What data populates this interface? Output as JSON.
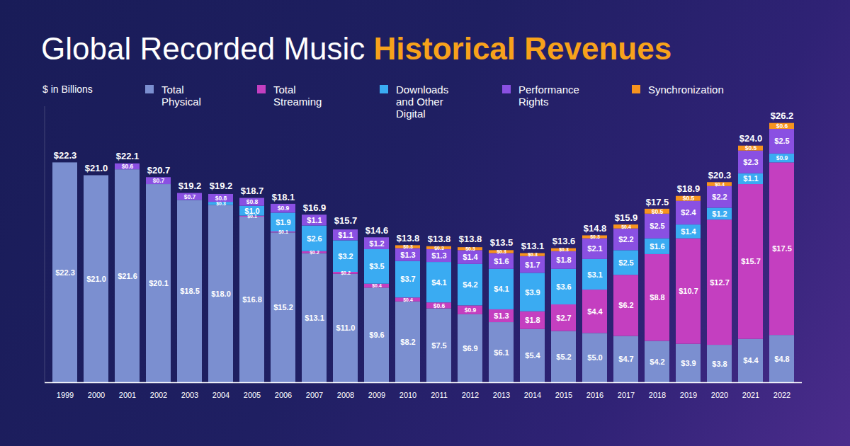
{
  "chart_data": {
    "type": "bar",
    "title": "Global Recorded Music Historical Revenues",
    "title_highlight": "Historical Revenues",
    "ylabel": "$ in Billions",
    "stacked": true,
    "data_labels": true,
    "tick_labels": "x",
    "ylim": [
      0,
      28
    ],
    "categories": [
      "1999",
      "2000",
      "2001",
      "2002",
      "2003",
      "2004",
      "2005",
      "2006",
      "2007",
      "2008",
      "2009",
      "2010",
      "2011",
      "2012",
      "2013",
      "2014",
      "2015",
      "2016",
      "2017",
      "2018",
      "2019",
      "2020",
      "2021",
      "2022"
    ],
    "series": [
      {
        "name": "Total Physical",
        "color": "#7b8fd0",
        "values": [
          22.3,
          21.0,
          21.6,
          20.1,
          18.5,
          18.0,
          16.8,
          15.2,
          13.1,
          11.0,
          9.6,
          8.2,
          7.5,
          6.9,
          6.1,
          5.4,
          5.2,
          5.0,
          4.7,
          4.2,
          3.9,
          3.8,
          4.4,
          4.8
        ],
        "value_labels": [
          "$22.3",
          "$21.0",
          "$21.6",
          "$20.1",
          "$18.5",
          "$18.0",
          "$16.8",
          "$15.2",
          "$13.1",
          "$11.0",
          "$9.6",
          "$8.2",
          "$7.5",
          "$6.9",
          "$6.1",
          "$5.4",
          "$5.2",
          "$5.0",
          "$4.7",
          "$4.2",
          "$3.9",
          "$3.8",
          "$4.4",
          "$4.8"
        ]
      },
      {
        "name": "Total Streaming",
        "color": "#c43fc0",
        "values": [
          null,
          null,
          null,
          null,
          null,
          null,
          0.1,
          0.1,
          0.2,
          0.2,
          0.4,
          0.4,
          0.6,
          0.9,
          1.3,
          1.8,
          2.7,
          4.4,
          6.2,
          8.8,
          10.7,
          12.7,
          15.7,
          17.5
        ],
        "value_labels": [
          null,
          null,
          null,
          null,
          null,
          null,
          "$0.1",
          "$0.1",
          "$0.2",
          "$0.2",
          "$0.4",
          "$0.4",
          "$0.6",
          "$0.9",
          "$1.3",
          "$1.8",
          "$2.7",
          "$4.4",
          "$6.2",
          "$8.8",
          "$10.7",
          "$12.7",
          "$15.7",
          "$17.5"
        ]
      },
      {
        "name": "Downloads and Other Digital",
        "color": "#3aabf2",
        "values": [
          null,
          null,
          null,
          null,
          null,
          0.3,
          1.0,
          1.9,
          2.6,
          3.2,
          3.5,
          3.7,
          4.1,
          4.2,
          4.1,
          3.9,
          3.6,
          3.1,
          2.5,
          1.6,
          1.4,
          1.2,
          1.1,
          0.9
        ],
        "value_labels": [
          null,
          null,
          null,
          null,
          null,
          "$0.3",
          "$1.0",
          "$1.9",
          "$2.6",
          "$3.2",
          "$3.5",
          "$3.7",
          "$4.1",
          "$4.2",
          "$4.1",
          "$3.9",
          "$3.6",
          "$3.1",
          "$2.5",
          "$1.6",
          "$1.4",
          "$1.2",
          "$1.1",
          "$0.9"
        ]
      },
      {
        "name": "Performance Rights",
        "color": "#8a50e2",
        "values": [
          null,
          null,
          0.6,
          0.7,
          0.7,
          0.8,
          0.8,
          0.9,
          1.1,
          1.1,
          1.2,
          1.3,
          1.3,
          1.4,
          1.6,
          1.7,
          1.8,
          2.1,
          2.2,
          2.5,
          2.4,
          2.2,
          2.3,
          2.5
        ],
        "value_labels": [
          null,
          null,
          "$0.6",
          "$0.7",
          "$0.7",
          "$0.8",
          "$0.8",
          "$0.9",
          "$1.1",
          "$1.1",
          "$1.2",
          "$1.3",
          "$1.3",
          "$1.4",
          "$1.6",
          "$1.7",
          "$1.8",
          "$2.1",
          "$2.2",
          "$2.5",
          "$2.4",
          "$2.2",
          "$2.3",
          "$2.5"
        ]
      },
      {
        "name": "Synchronization",
        "color": "#f7931e",
        "values": [
          null,
          null,
          null,
          null,
          null,
          null,
          null,
          null,
          null,
          null,
          null,
          0.3,
          0.3,
          0.3,
          0.3,
          0.3,
          0.3,
          0.3,
          0.4,
          0.5,
          0.5,
          0.4,
          0.5,
          0.6
        ],
        "value_labels": [
          null,
          null,
          null,
          null,
          null,
          null,
          null,
          null,
          null,
          null,
          null,
          "$0.3",
          "$0.3",
          "$0.3",
          "$0.3",
          "$0.3",
          "$0.3",
          "$0.3",
          "$0.4",
          "$0.5",
          "$0.5",
          "$0.4",
          "$0.5",
          "$0.6"
        ]
      }
    ],
    "totals": {
      "values": [
        22.3,
        21.0,
        22.1,
        20.7,
        19.2,
        19.2,
        18.7,
        18.1,
        16.9,
        15.7,
        14.6,
        13.8,
        13.8,
        13.8,
        13.5,
        13.1,
        13.6,
        14.8,
        15.9,
        17.5,
        18.9,
        20.3,
        24.0,
        26.2
      ],
      "value_labels": [
        "$22.3",
        "$21.0",
        "$22.1",
        "$20.7",
        "$19.2",
        "$19.2",
        "$18.7",
        "$18.1",
        "$16.9",
        "$15.7",
        "$14.6",
        "$13.8",
        "$13.8",
        "$13.8",
        "$13.5",
        "$13.1",
        "$13.6",
        "$14.8",
        "$15.9",
        "$17.5",
        "$18.9",
        "$20.3",
        "$24.0",
        "$26.2"
      ]
    },
    "highlighted": [
      "1999",
      "2021"
    ]
  }
}
